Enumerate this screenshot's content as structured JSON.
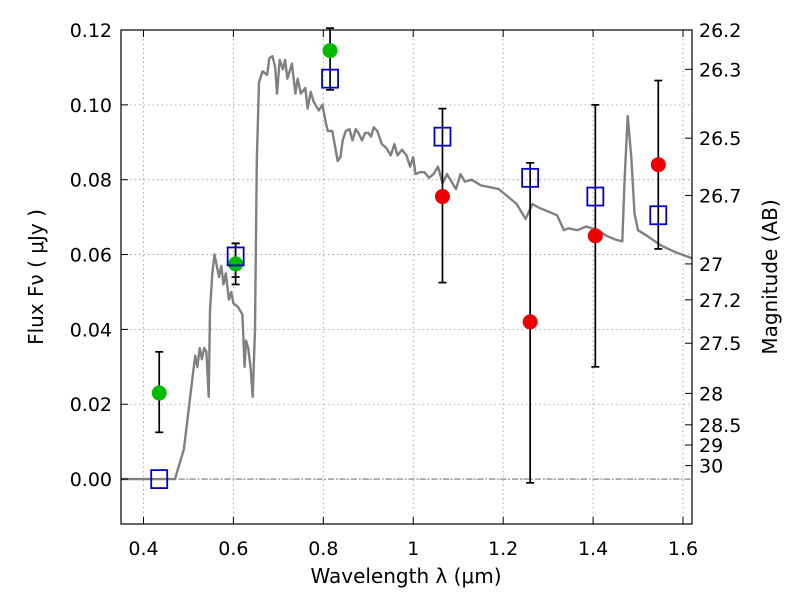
{
  "chart_data": {
    "type": "scatter",
    "title": "",
    "xlabel": "Wavelength  λ (μm)",
    "ylabel": "Flux  Fν  ( μJy )",
    "y2label": "Magnitude (AB)",
    "xlim": [
      0.35,
      1.62
    ],
    "ylim": [
      -0.012,
      0.12
    ],
    "grid": true,
    "xticks": [
      0.4,
      0.6,
      0.8,
      1.0,
      1.2,
      1.4,
      1.6
    ],
    "xtick_labels": [
      "0.4",
      "0.6",
      "0.8",
      "1",
      "1.2",
      "1.4",
      "1.6"
    ],
    "yticks": [
      0.0,
      0.02,
      0.04,
      0.06,
      0.08,
      0.1,
      0.12
    ],
    "ytick_labels": [
      "0.00",
      "0.02",
      "0.04",
      "0.06",
      "0.08",
      "0.10",
      "0.12"
    ],
    "y2_ticks": [
      {
        "label": "26.2",
        "flux": 0.12
      },
      {
        "label": "26.3",
        "flux": 0.1095
      },
      {
        "label": "26.5",
        "flux": 0.0911
      },
      {
        "label": "26.7",
        "flux": 0.0758
      },
      {
        "label": "27",
        "flux": 0.0575
      },
      {
        "label": "27.2",
        "flux": 0.0479
      },
      {
        "label": "27.5",
        "flux": 0.0363
      },
      {
        "label": "28",
        "flux": 0.0229
      },
      {
        "label": "28.5",
        "flux": 0.0145
      },
      {
        "label": "29",
        "flux": 0.0091
      },
      {
        "label": "30",
        "flux": 0.0036
      }
    ],
    "colors": {
      "model": "#808080",
      "green": "#00bb00",
      "red": "#ee0000",
      "blue": "#0000cc",
      "errorbar": "#000000",
      "grid": "#999999"
    },
    "series": [
      {
        "type": "line",
        "points": [
          [
            0.35,
            0.0
          ],
          [
            0.47,
            0.0
          ],
          [
            0.48,
            0.004
          ],
          [
            0.49,
            0.008
          ],
          [
            0.5,
            0.018
          ],
          [
            0.51,
            0.028
          ],
          [
            0.515,
            0.033
          ],
          [
            0.52,
            0.03
          ],
          [
            0.525,
            0.035
          ],
          [
            0.53,
            0.032
          ],
          [
            0.535,
            0.035
          ],
          [
            0.54,
            0.034
          ],
          [
            0.545,
            0.022
          ],
          [
            0.548,
            0.045
          ],
          [
            0.553,
            0.055
          ],
          [
            0.558,
            0.06
          ],
          [
            0.563,
            0.057
          ],
          [
            0.568,
            0.054
          ],
          [
            0.573,
            0.057
          ],
          [
            0.578,
            0.052
          ],
          [
            0.583,
            0.055
          ],
          [
            0.59,
            0.048
          ],
          [
            0.595,
            0.05
          ],
          [
            0.6,
            0.047
          ],
          [
            0.61,
            0.046
          ],
          [
            0.62,
            0.044
          ],
          [
            0.625,
            0.03
          ],
          [
            0.628,
            0.037
          ],
          [
            0.633,
            0.035
          ],
          [
            0.638,
            0.03
          ],
          [
            0.643,
            0.022
          ],
          [
            0.648,
            0.04
          ],
          [
            0.652,
            0.085
          ],
          [
            0.657,
            0.106
          ],
          [
            0.665,
            0.109
          ],
          [
            0.675,
            0.108
          ],
          [
            0.68,
            0.1125
          ],
          [
            0.687,
            0.113
          ],
          [
            0.693,
            0.11
          ],
          [
            0.697,
            0.103
          ],
          [
            0.703,
            0.112
          ],
          [
            0.71,
            0.1095
          ],
          [
            0.715,
            0.112
          ],
          [
            0.72,
            0.107
          ],
          [
            0.73,
            0.111
          ],
          [
            0.738,
            0.103
          ],
          [
            0.743,
            0.107
          ],
          [
            0.75,
            0.103
          ],
          [
            0.76,
            0.1045
          ],
          [
            0.765,
            0.099
          ],
          [
            0.772,
            0.1035
          ],
          [
            0.778,
            0.101
          ],
          [
            0.79,
            0.0985
          ],
          [
            0.798,
            0.1
          ],
          [
            0.806,
            0.095
          ],
          [
            0.81,
            0.093
          ],
          [
            0.82,
            0.093
          ],
          [
            0.826,
            0.089
          ],
          [
            0.832,
            0.085
          ],
          [
            0.838,
            0.086
          ],
          [
            0.843,
            0.0905
          ],
          [
            0.85,
            0.093
          ],
          [
            0.858,
            0.0935
          ],
          [
            0.865,
            0.0905
          ],
          [
            0.872,
            0.0935
          ],
          [
            0.878,
            0.0925
          ],
          [
            0.886,
            0.0905
          ],
          [
            0.893,
            0.0925
          ],
          [
            0.9,
            0.0925
          ],
          [
            0.906,
            0.0915
          ],
          [
            0.912,
            0.094
          ],
          [
            0.92,
            0.093
          ],
          [
            0.93,
            0.0895
          ],
          [
            0.94,
            0.0885
          ],
          [
            0.95,
            0.0865
          ],
          [
            0.958,
            0.0895
          ],
          [
            0.965,
            0.0865
          ],
          [
            0.975,
            0.088
          ],
          [
            0.985,
            0.0865
          ],
          [
            0.993,
            0.0835
          ],
          [
            1.0,
            0.086
          ],
          [
            1.005,
            0.0815
          ],
          [
            1.015,
            0.082
          ],
          [
            1.025,
            0.082
          ],
          [
            1.035,
            0.0805
          ],
          [
            1.045,
            0.0815
          ],
          [
            1.055,
            0.0835
          ],
          [
            1.065,
            0.079
          ],
          [
            1.075,
            0.0815
          ],
          [
            1.085,
            0.0795
          ],
          [
            1.095,
            0.0775
          ],
          [
            1.105,
            0.0815
          ],
          [
            1.115,
            0.0795
          ],
          [
            1.13,
            0.08
          ],
          [
            1.15,
            0.0785
          ],
          [
            1.17,
            0.078
          ],
          [
            1.19,
            0.0775
          ],
          [
            1.21,
            0.0755
          ],
          [
            1.23,
            0.0735
          ],
          [
            1.25,
            0.0695
          ],
          [
            1.265,
            0.0735
          ],
          [
            1.28,
            0.0725
          ],
          [
            1.3,
            0.0715
          ],
          [
            1.32,
            0.0705
          ],
          [
            1.335,
            0.0665
          ],
          [
            1.345,
            0.067
          ],
          [
            1.365,
            0.0665
          ],
          [
            1.385,
            0.0675
          ],
          [
            1.41,
            0.0665
          ],
          [
            1.43,
            0.065
          ],
          [
            1.45,
            0.064
          ],
          [
            1.465,
            0.0635
          ],
          [
            1.47,
            0.08
          ],
          [
            1.477,
            0.097
          ],
          [
            1.485,
            0.086
          ],
          [
            1.492,
            0.071
          ],
          [
            1.5,
            0.0665
          ],
          [
            1.52,
            0.065
          ],
          [
            1.55,
            0.0625
          ],
          [
            1.58,
            0.0608
          ],
          [
            1.62,
            0.059
          ]
        ]
      },
      {
        "type": "points",
        "marker": "circle",
        "color": "green",
        "points": [
          {
            "x": 0.435,
            "y": 0.023,
            "ylo": 0.0125,
            "yhi": 0.034
          },
          {
            "x": 0.605,
            "y": 0.0575,
            "ylo": 0.052,
            "yhi": 0.063
          },
          {
            "x": 0.815,
            "y": 0.1145
          }
        ]
      },
      {
        "type": "points",
        "marker": "circle",
        "color": "red",
        "points": [
          {
            "x": 1.065,
            "y": 0.0755,
            "ylo": 0.0525,
            "yhi": 0.099
          },
          {
            "x": 1.26,
            "y": 0.042,
            "ylo": -0.001,
            "yhi": 0.0845
          },
          {
            "x": 1.405,
            "y": 0.065,
            "ylo": 0.03,
            "yhi": 0.1
          },
          {
            "x": 1.545,
            "y": 0.084,
            "ylo": 0.0615,
            "yhi": 0.1065
          }
        ]
      },
      {
        "type": "points",
        "marker": "square",
        "color": "blue",
        "points": [
          {
            "x": 0.435,
            "y": 0.0
          },
          {
            "x": 0.605,
            "y": 0.0595,
            "ylo": 0.054,
            "yhi": 0.063
          },
          {
            "x": 0.815,
            "y": 0.107,
            "ylo": 0.104,
            "yhi": 0.1205
          },
          {
            "x": 1.065,
            "y": 0.0915
          },
          {
            "x": 1.26,
            "y": 0.0805
          },
          {
            "x": 1.405,
            "y": 0.0755
          },
          {
            "x": 1.545,
            "y": 0.0705
          }
        ]
      }
    ]
  }
}
